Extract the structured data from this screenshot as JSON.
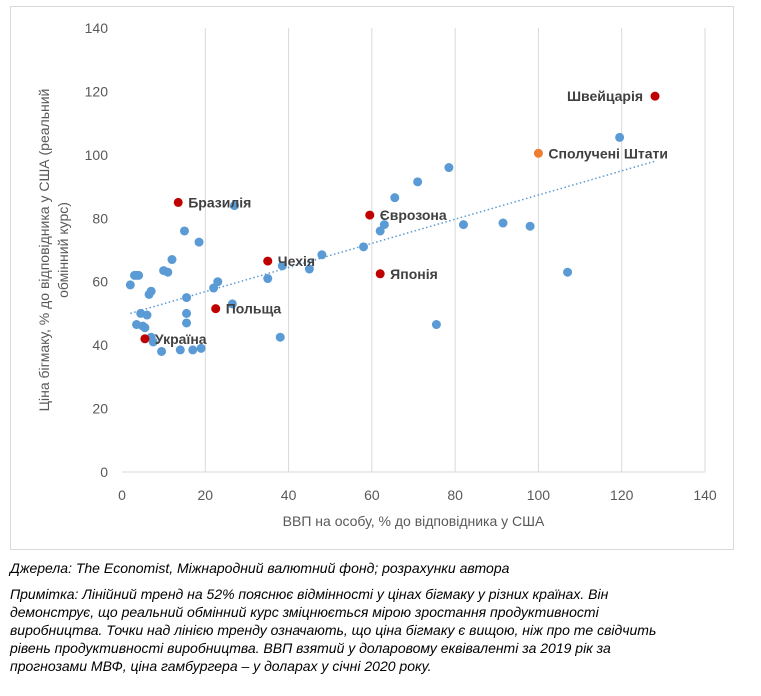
{
  "chart_data": {
    "type": "scatter",
    "xlabel": "ВВП на особу, % до відповідника у США",
    "ylabel_lines": [
      "Ціна бігмаку, % до відповідника у США (реальний",
      "обмінний курс)"
    ],
    "xlim": [
      0,
      140
    ],
    "ylim": [
      0,
      140
    ],
    "x_ticks": [
      0,
      20,
      40,
      60,
      80,
      100,
      120,
      140
    ],
    "y_ticks": [
      0,
      20,
      40,
      60,
      80,
      100,
      120,
      140
    ],
    "grid": "vertical",
    "colors": {
      "points": "#5b9bd5",
      "highlight": "#c00000",
      "usa": "#ed7d31",
      "trend": "#5b9bd5",
      "grid": "#d9d9d9",
      "axis_text": "#595959"
    },
    "trendline": {
      "type": "linear",
      "style": "dotted",
      "from": [
        2,
        50
      ],
      "to": [
        128,
        98
      ]
    },
    "points": [
      {
        "x": 2,
        "y": 59
      },
      {
        "x": 3,
        "y": 62
      },
      {
        "x": 3.5,
        "y": 62
      },
      {
        "x": 4,
        "y": 62
      },
      {
        "x": 3.5,
        "y": 46.5
      },
      {
        "x": 4.5,
        "y": 50
      },
      {
        "x": 5,
        "y": 46
      },
      {
        "x": 5.5,
        "y": 45.5
      },
      {
        "x": 6,
        "y": 49.5
      },
      {
        "x": 6.5,
        "y": 56
      },
      {
        "x": 7,
        "y": 57
      },
      {
        "x": 7,
        "y": 42.5
      },
      {
        "x": 7.5,
        "y": 41
      },
      {
        "x": 9.5,
        "y": 38
      },
      {
        "x": 10,
        "y": 63.5
      },
      {
        "x": 11,
        "y": 63
      },
      {
        "x": 12,
        "y": 67
      },
      {
        "x": 14,
        "y": 38.5
      },
      {
        "x": 15,
        "y": 76
      },
      {
        "x": 15.5,
        "y": 50
      },
      {
        "x": 15.5,
        "y": 47
      },
      {
        "x": 15.5,
        "y": 55
      },
      {
        "x": 17,
        "y": 38.5
      },
      {
        "x": 18.5,
        "y": 72.5
      },
      {
        "x": 19,
        "y": 39
      },
      {
        "x": 22,
        "y": 58
      },
      {
        "x": 23,
        "y": 60
      },
      {
        "x": 26.5,
        "y": 53
      },
      {
        "x": 27,
        "y": 84
      },
      {
        "x": 35,
        "y": 61
      },
      {
        "x": 38,
        "y": 42.5
      },
      {
        "x": 38.5,
        "y": 65
      },
      {
        "x": 45,
        "y": 64
      },
      {
        "x": 48,
        "y": 68.5
      },
      {
        "x": 58,
        "y": 71
      },
      {
        "x": 62,
        "y": 76
      },
      {
        "x": 63,
        "y": 78
      },
      {
        "x": 65.5,
        "y": 86.5
      },
      {
        "x": 71,
        "y": 91.5
      },
      {
        "x": 75.5,
        "y": 46.5
      },
      {
        "x": 78.5,
        "y": 96
      },
      {
        "x": 82,
        "y": 78
      },
      {
        "x": 91.5,
        "y": 78.5
      },
      {
        "x": 98,
        "y": 77.5
      },
      {
        "x": 107,
        "y": 63
      },
      {
        "x": 119.5,
        "y": 105.5
      }
    ],
    "labeled_points": [
      {
        "label": "Швейцарія",
        "x": 128,
        "y": 118.5,
        "color": "#c00000",
        "side": "left"
      },
      {
        "label": "Сполучені Штати",
        "x": 100,
        "y": 100.5,
        "color": "#ed7d31",
        "side": "right"
      },
      {
        "label": "Бразилія",
        "x": 13.5,
        "y": 85,
        "color": "#c00000",
        "side": "right"
      },
      {
        "label": "Єврозона",
        "x": 59.5,
        "y": 81,
        "color": "#c00000",
        "side": "right"
      },
      {
        "label": "Чехія",
        "x": 35,
        "y": 66.5,
        "color": "#c00000",
        "side": "right"
      },
      {
        "label": "Японія",
        "x": 62,
        "y": 62.5,
        "color": "#c00000",
        "side": "right"
      },
      {
        "label": "Польща",
        "x": 22.5,
        "y": 51.5,
        "color": "#c00000",
        "side": "right"
      },
      {
        "label": "Україна",
        "x": 5.5,
        "y": 42,
        "color": "#c00000",
        "side": "right"
      }
    ]
  },
  "notes": {
    "source": "Джерела: The Economist, Міжнародний валютний фонд; розрахунки автора",
    "lines": [
      "Примітка: Лінійний тренд на 52% пояснює відмінності у цінах бігмаку у різних країнах. Він",
      "демонструє, що реальний обмінний курс зміцнюється мірою зростання продуктивності",
      "виробництва. Точки над лінією тренду означають, що ціна бігмаку є вищою, ніж про те свідчить",
      "рівень продуктивності виробництва. ВВП взятий у доларовому еквіваленті за 2019 рік за",
      "прогнозами МВФ, ціна гамбургера – у доларах у січні 2020 року."
    ]
  }
}
